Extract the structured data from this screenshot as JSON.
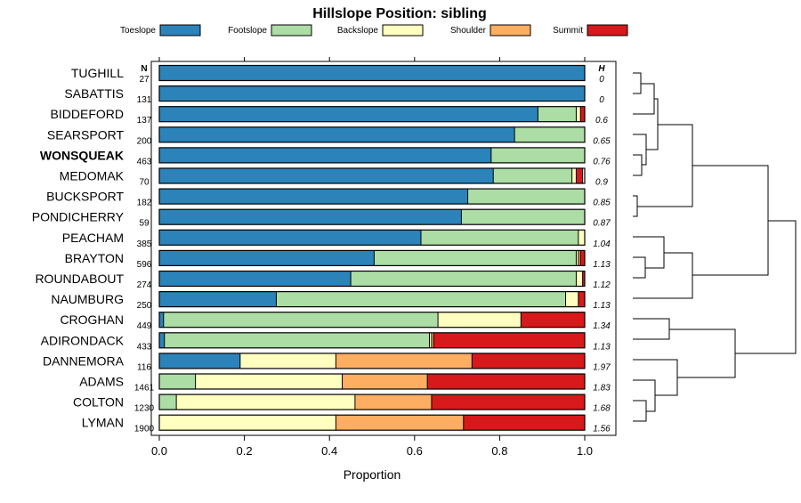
{
  "chart_data": {
    "type": "bar",
    "orientation": "horizontal",
    "stacked": true,
    "title": "Hillslope Position: sibling",
    "xlabel": "Proportion",
    "ylabel": "",
    "xlim": [
      0,
      1
    ],
    "x_ticks": [
      "0.0",
      "0.2",
      "0.4",
      "0.6",
      "0.8",
      "1.0"
    ],
    "n_header": "N",
    "h_header": "H",
    "highlight": "WONSQUEAK",
    "legend_position": "top",
    "colors": {
      "Toeslope": "#2B83BA",
      "Footslope": "#ABDDA4",
      "Backslope": "#FFFFBF",
      "Shoulder": "#FDAE61",
      "Summit": "#D7191C"
    },
    "categories": [
      "TUGHILL",
      "SABATTIS",
      "BIDDEFORD",
      "SEARSPORT",
      "WONSQUEAK",
      "MEDOMAK",
      "BUCKSPORT",
      "PONDICHERRY",
      "PEACHAM",
      "BRAYTON",
      "ROUNDABOUT",
      "NAUMBURG",
      "CROGHAN",
      "ADIRONDACK",
      "DANNEMORA",
      "ADAMS",
      "COLTON",
      "LYMAN"
    ],
    "n": [
      "27",
      "131",
      "137",
      "200",
      "463",
      "70",
      "182",
      "59",
      "385",
      "596",
      "274",
      "250",
      "449",
      "433",
      "116",
      "1461",
      "1230",
      "1900"
    ],
    "h": [
      "0",
      "0",
      "0.6",
      "0.65",
      "0.76",
      "0.9",
      "0.85",
      "0.87",
      "1.04",
      "1.13",
      "1.12",
      "1.13",
      "1.34",
      "1.13",
      "1.97",
      "1.83",
      "1.68",
      "1.56"
    ],
    "series": [
      {
        "name": "Toeslope",
        "values": [
          1.0,
          1.0,
          0.89,
          0.835,
          0.78,
          0.785,
          0.725,
          0.71,
          0.615,
          0.505,
          0.45,
          0.275,
          0.01,
          0.012,
          0.19,
          0.0,
          0.0,
          0.0
        ]
      },
      {
        "name": "Footslope",
        "values": [
          0.0,
          0.0,
          0.09,
          0.165,
          0.22,
          0.185,
          0.275,
          0.29,
          0.37,
          0.475,
          0.53,
          0.68,
          0.645,
          0.623,
          0.0,
          0.085,
          0.04,
          0.0
        ]
      },
      {
        "name": "Backslope",
        "values": [
          0.0,
          0.0,
          0.01,
          0.0,
          0.0,
          0.01,
          0.0,
          0.0,
          0.015,
          0.005,
          0.015,
          0.03,
          0.195,
          0.005,
          0.225,
          0.345,
          0.42,
          0.415
        ]
      },
      {
        "name": "Shoulder",
        "values": [
          0.0,
          0.0,
          0.0,
          0.0,
          0.0,
          0.0,
          0.0,
          0.0,
          0.0,
          0.005,
          0.0,
          0.0,
          0.0,
          0.005,
          0.32,
          0.2,
          0.18,
          0.3
        ]
      },
      {
        "name": "Summit",
        "values": [
          0.0,
          0.0,
          0.01,
          0.0,
          0.0,
          0.015,
          0.0,
          0.0,
          0.0,
          0.01,
          0.005,
          0.015,
          0.15,
          0.355,
          0.265,
          0.37,
          0.36,
          0.285
        ]
      }
    ]
  }
}
